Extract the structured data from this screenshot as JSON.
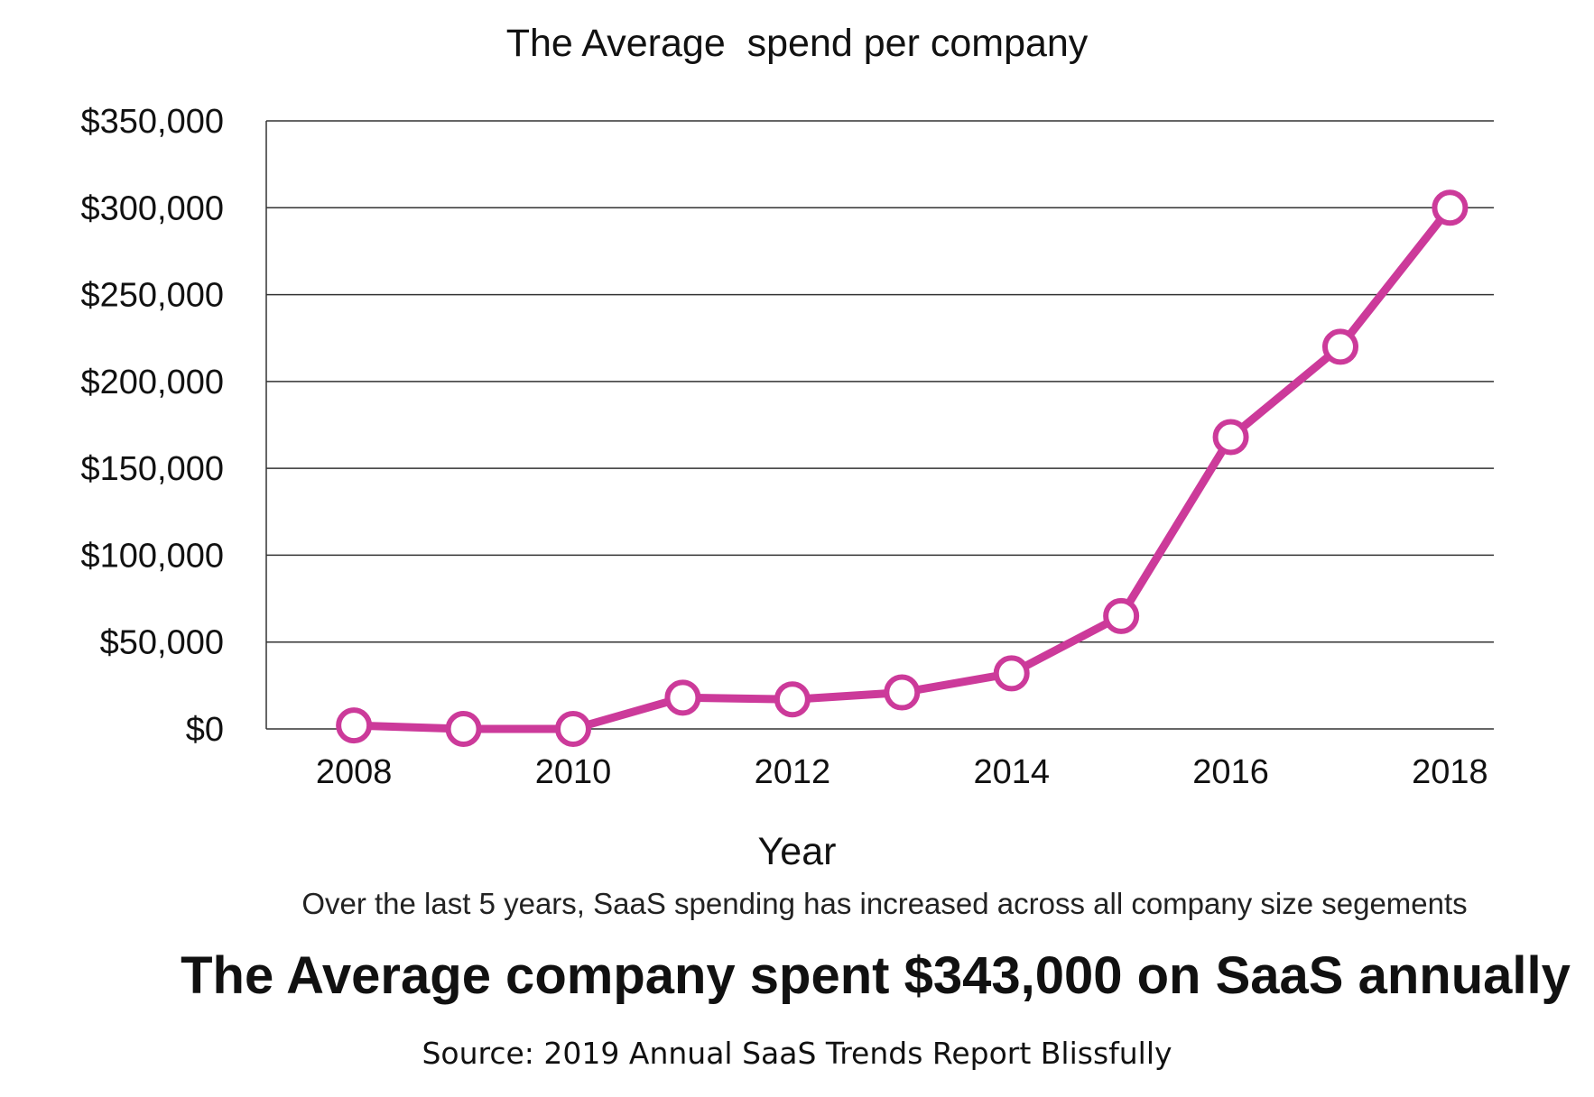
{
  "chart_data": {
    "type": "line",
    "title": "The Average  spend per company",
    "xlabel": "Year",
    "ylabel": "",
    "x": [
      2008,
      2009,
      2010,
      2011,
      2012,
      2013,
      2014,
      2015,
      2016,
      2017,
      2018
    ],
    "x_tick_labels": [
      "2008",
      "2010",
      "2012",
      "2014",
      "2016",
      "2018"
    ],
    "x_tick_values": [
      2008,
      2010,
      2012,
      2014,
      2016,
      2018
    ],
    "y_tick_labels": [
      "$0",
      "$50,000",
      "$100,000",
      "$150,000",
      "$200,000",
      "$250,000",
      "$300,000",
      "$350,000"
    ],
    "y_tick_values": [
      0,
      50000,
      100000,
      150000,
      200000,
      250000,
      300000,
      350000
    ],
    "ylim": [
      0,
      350000
    ],
    "xlim": [
      2007.2,
      2018.4
    ],
    "grid": "horizontal",
    "series": [
      {
        "values": [
          2000,
          0,
          0,
          18000,
          17000,
          21000,
          32000,
          65000,
          168000,
          220000,
          300000
        ],
        "color": "#cc3a9a"
      }
    ]
  },
  "subtitle": "Over the last 5 years, SaaS spending has increased across all company size segements",
  "headline": "The Average company spent $343,000 on SaaS annually",
  "source": "Source: 2019 Annual SaaS Trends Report Blissfully",
  "colors": {
    "line": "#cc3a9a",
    "grid": "#333333",
    "marker_fill": "#ffffff",
    "text": "#111111"
  }
}
